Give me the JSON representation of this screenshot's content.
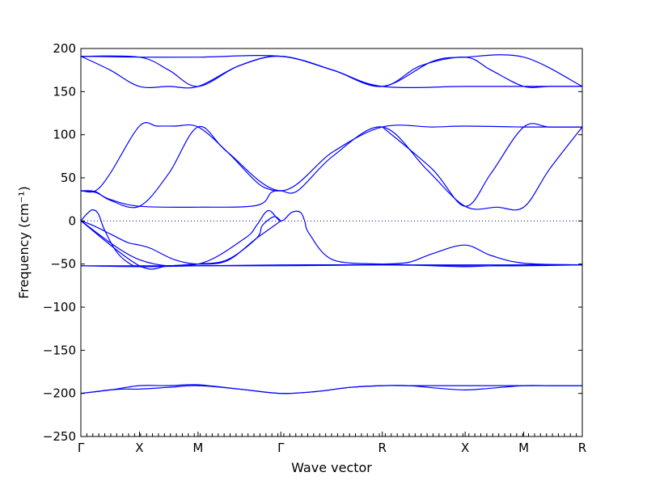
{
  "chart_data": {
    "type": "line",
    "xlabel": "Wave vector",
    "ylabel": "Frequency (cm⁻¹)",
    "ylim": [
      -250,
      200
    ],
    "y_ticks": [
      200,
      150,
      100,
      50,
      0,
      -50,
      -100,
      -150,
      -200,
      -250
    ],
    "x_ticks": [
      {
        "label": "Γ",
        "x": 0
      },
      {
        "label": "X",
        "x": 1
      },
      {
        "label": "M",
        "x": 2
      },
      {
        "label": "Γ",
        "x": 3.414
      },
      {
        "label": "R",
        "x": 5.146
      },
      {
        "label": "X",
        "x": 6.56
      },
      {
        "label": "M",
        "x": 7.56
      },
      {
        "label": "R",
        "x": 8.56
      }
    ],
    "xlim": [
      0,
      8.56
    ],
    "reference_line": 0,
    "color": "#0000ff",
    "series": [
      {
        "x": [
          0,
          0.25,
          0.5,
          0.75,
          1.0,
          1.5,
          2.0,
          2.7,
          3.414,
          4.0,
          4.6,
          5.146,
          5.6,
          6.1,
          6.56,
          7.0,
          7.56,
          8.0,
          8.56
        ],
        "values": [
          -200,
          -198,
          -196,
          -195,
          -195,
          -193,
          -191,
          -195,
          -200,
          -198,
          -193,
          -191,
          -191,
          -194,
          -196,
          -194,
          -191,
          -191,
          -191
        ]
      },
      {
        "x": [
          0,
          0.5,
          1.0,
          1.5,
          2.0,
          2.7,
          3.414,
          4.0,
          4.6,
          5.146,
          5.6,
          6.1,
          6.56,
          7.0,
          7.56,
          8.0,
          8.56
        ],
        "values": [
          -200,
          -196,
          -191,
          -191,
          -190,
          -195,
          -200,
          -198,
          -193,
          -191,
          -191,
          -191,
          -191,
          -191,
          -191,
          -191,
          -191
        ]
      },
      {
        "x": [
          0,
          1.0,
          2.0,
          3.414,
          5.146,
          6.56,
          7.56,
          8.56
        ],
        "values": [
          -52,
          -53,
          -52,
          -51,
          -51,
          -52,
          -52,
          -51
        ]
      },
      {
        "x": [
          0,
          0.3,
          0.6,
          1.0,
          2.0,
          3.414,
          5.146,
          6.56,
          7.56,
          8.56
        ],
        "values": [
          -52,
          -52,
          -52,
          -52,
          -52,
          -52,
          -51,
          -51,
          -51,
          -51
        ]
      },
      {
        "x": [
          0,
          0.2,
          0.5,
          0.8,
          1.0,
          1.2,
          1.6,
          2.0,
          2.5,
          3.0,
          3.414
        ],
        "values": [
          0,
          -5,
          -15,
          -25,
          -28,
          -32,
          -45,
          -50,
          -46,
          -20,
          0
        ]
      },
      {
        "x": [
          0,
          0.1,
          0.2,
          0.3,
          0.4,
          0.6,
          0.8,
          1.0,
          1.5,
          2.0
        ],
        "values": [
          0,
          8,
          13,
          8,
          -10,
          -35,
          -48,
          -53,
          -52,
          -50
        ]
      },
      {
        "x": [
          0,
          1.0,
          2.0,
          2.8,
          3.0,
          3.2,
          3.414,
          3.6,
          3.75,
          3.82,
          3.9,
          4.3,
          5.146
        ],
        "values": [
          0,
          -45,
          -50,
          -20,
          -5,
          12,
          0,
          10,
          10,
          0,
          -15,
          -45,
          -50
        ]
      },
      {
        "x": [
          0,
          1.0,
          1.5,
          2.0,
          2.5,
          3.0,
          3.1,
          3.3,
          3.414
        ],
        "values": [
          0,
          -52,
          -52,
          -50,
          -45,
          -20,
          -5,
          5,
          0
        ]
      },
      {
        "x": [
          5.146,
          5.6,
          6.0,
          6.56,
          7.0,
          7.56,
          8.56
        ],
        "values": [
          -50,
          -48,
          -38,
          -28,
          -40,
          -49,
          -51
        ]
      },
      {
        "x": [
          5.146,
          6.0,
          6.56,
          7.0,
          7.56,
          8.56
        ],
        "values": [
          -50,
          -52,
          -53,
          -52,
          -51,
          -51
        ]
      },
      {
        "x": [
          0,
          0.25,
          0.5,
          1.0,
          2.0,
          3.0,
          3.25,
          3.414,
          3.7,
          4.3,
          5.146,
          5.9,
          6.56,
          7.1,
          7.56,
          8.0,
          8.56
        ],
        "values": [
          35,
          33,
          25,
          17,
          16,
          18,
          33,
          35,
          35,
          75,
          109,
          60,
          17,
          16,
          16,
          60,
          109
        ]
      },
      {
        "x": [
          0,
          0.25,
          0.5,
          1.0,
          1.3,
          1.6,
          2.0,
          2.5,
          3.0,
          3.25,
          3.414
        ],
        "values": [
          35,
          35,
          55,
          110,
          110,
          110,
          109,
          80,
          45,
          36,
          35
        ]
      },
      {
        "x": [
          0,
          0.25,
          0.5,
          1.0,
          1.5,
          2.0,
          2.5,
          3.414,
          4.3,
          5.146,
          6.0,
          6.56,
          7.56,
          8.56
        ],
        "values": [
          35,
          34,
          24,
          17,
          55,
          109,
          80,
          35,
          80,
          109,
          109,
          110,
          109,
          109
        ]
      },
      {
        "x": [
          5.146,
          6.0,
          6.56,
          7.0,
          7.56,
          8.0,
          8.56
        ],
        "values": [
          109,
          60,
          17,
          55,
          109,
          109,
          109
        ]
      },
      {
        "x": [
          0,
          1.0,
          2.0,
          3.414,
          4.3,
          5.146,
          6.0,
          6.56,
          7.56,
          8.56
        ],
        "values": [
          191,
          190,
          190,
          191,
          175,
          156,
          185,
          190,
          190,
          156
        ]
      },
      {
        "x": [
          0,
          0.5,
          1.0,
          1.5,
          2.0,
          2.7,
          3.414,
          4.3,
          5.146,
          6.56,
          7.56,
          8.56
        ],
        "values": [
          191,
          175,
          156,
          156,
          156,
          180,
          191,
          175,
          156,
          156,
          156,
          156
        ]
      },
      {
        "x": [
          0,
          1.0,
          1.5,
          2.0,
          2.7,
          3.414,
          4.3,
          5.146,
          5.8,
          6.56,
          7.0,
          7.56,
          8.0,
          8.56
        ],
        "values": [
          191,
          190,
          175,
          156,
          180,
          191,
          175,
          156,
          180,
          190,
          175,
          156,
          156,
          156
        ]
      }
    ]
  }
}
